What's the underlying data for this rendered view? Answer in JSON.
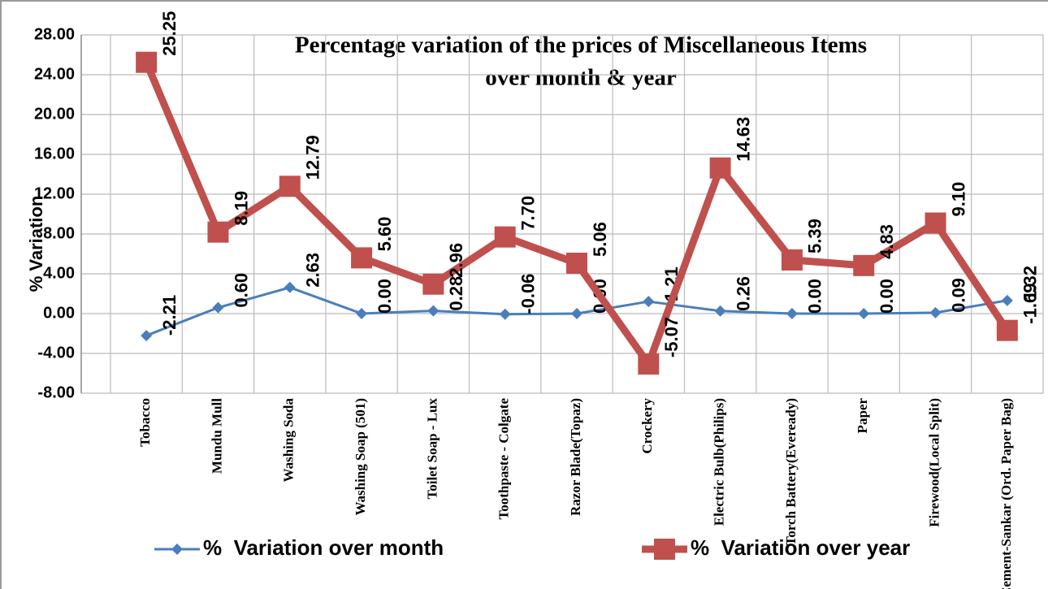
{
  "chart_data": {
    "type": "line",
    "title": "Percentage variation of the prices of Miscellaneous Items",
    "subtitle": "over month & year",
    "y_label": "% Variation",
    "categories": [
      "Tobacco",
      "Mundu Mull",
      "Washing Soda",
      "Washing Soap (501)",
      "Toilet Soap - Lux",
      "Toothpaste - Colgate",
      "Razor Blade(Topaz)",
      "Crockery",
      "Electric Bulb(Philips)",
      "Torch Battery(Eveready)",
      "Paper",
      "Firewood(Local Split)",
      "Cement-Sankar (Ord. Paper Bag)"
    ],
    "series": [
      {
        "name": "%  Variation over month",
        "color": "#4a7ebb",
        "values": [
          -2.21,
          0.6,
          2.63,
          0,
          0.28,
          -0.06,
          0,
          1.21,
          0.26,
          0,
          0,
          0.09,
          1.32
        ],
        "value_labels": [
          "-2.21",
          "0.60",
          "2.63",
          "0.00",
          "0.28",
          "-0.06",
          "0.00",
          "1.21",
          "0.26",
          "0.00",
          "0.00",
          "0.09",
          "1.32"
        ]
      },
      {
        "name": "%  Variation over year",
        "color": "#c0504d",
        "values": [
          25.25,
          8.19,
          12.79,
          5.6,
          2.96,
          7.7,
          5.06,
          -5.07,
          14.63,
          5.39,
          4.83,
          9.1,
          -1.69
        ],
        "value_labels": [
          "25.25",
          "8.19",
          "12.79",
          "5.60",
          "2.96",
          "7.70",
          "5.06",
          "-5.07",
          "14.63",
          "5.39",
          "4.83",
          "9.10",
          "-1.69"
        ]
      }
    ],
    "ylim": [
      -8,
      28
    ],
    "yticks": [
      {
        "value": -8,
        "label": "-8.00"
      },
      {
        "value": -4,
        "label": "-4.00"
      },
      {
        "value": 0,
        "label": "0.00"
      },
      {
        "value": 4,
        "label": "4.00"
      },
      {
        "value": 8,
        "label": "8.00"
      },
      {
        "value": 12,
        "label": "12.00"
      },
      {
        "value": 16,
        "label": "16.00"
      },
      {
        "value": 20,
        "label": "20.00"
      },
      {
        "value": 24,
        "label": "24.00"
      },
      {
        "value": 28,
        "label": "28.00"
      }
    ],
    "grid": true,
    "legend": "bottom"
  }
}
